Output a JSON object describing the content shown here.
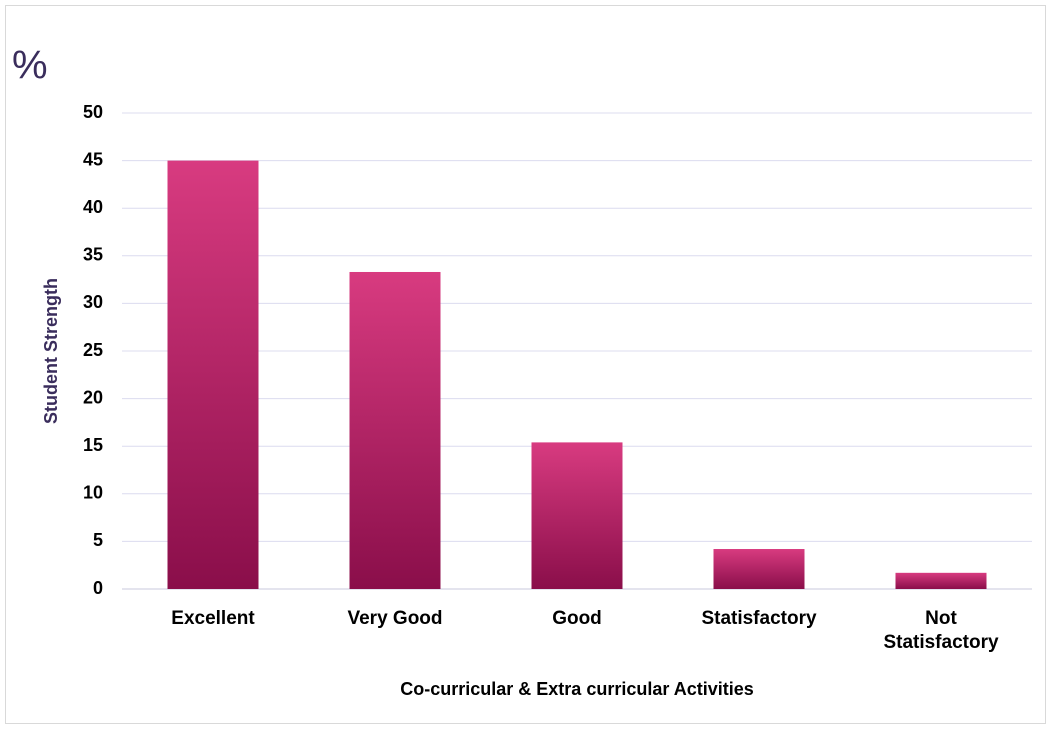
{
  "chart_data": {
    "type": "bar",
    "title": "%",
    "y_label": "Student Strength",
    "x_label": "Co-curricular & Extra curricular Activities",
    "categories": [
      "Excellent",
      "Very Good",
      "Good",
      "Statisfactory",
      "Not Statisfactory"
    ],
    "values": [
      45,
      33.3,
      15.4,
      4.2,
      1.7
    ],
    "colors": [
      "#d83b80",
      "#8a0e4a"
    ],
    "ylim": [
      0,
      50
    ],
    "yticks": [
      0,
      5,
      10,
      15,
      20,
      25,
      30,
      35,
      40,
      45,
      50
    ],
    "grid": true
  }
}
